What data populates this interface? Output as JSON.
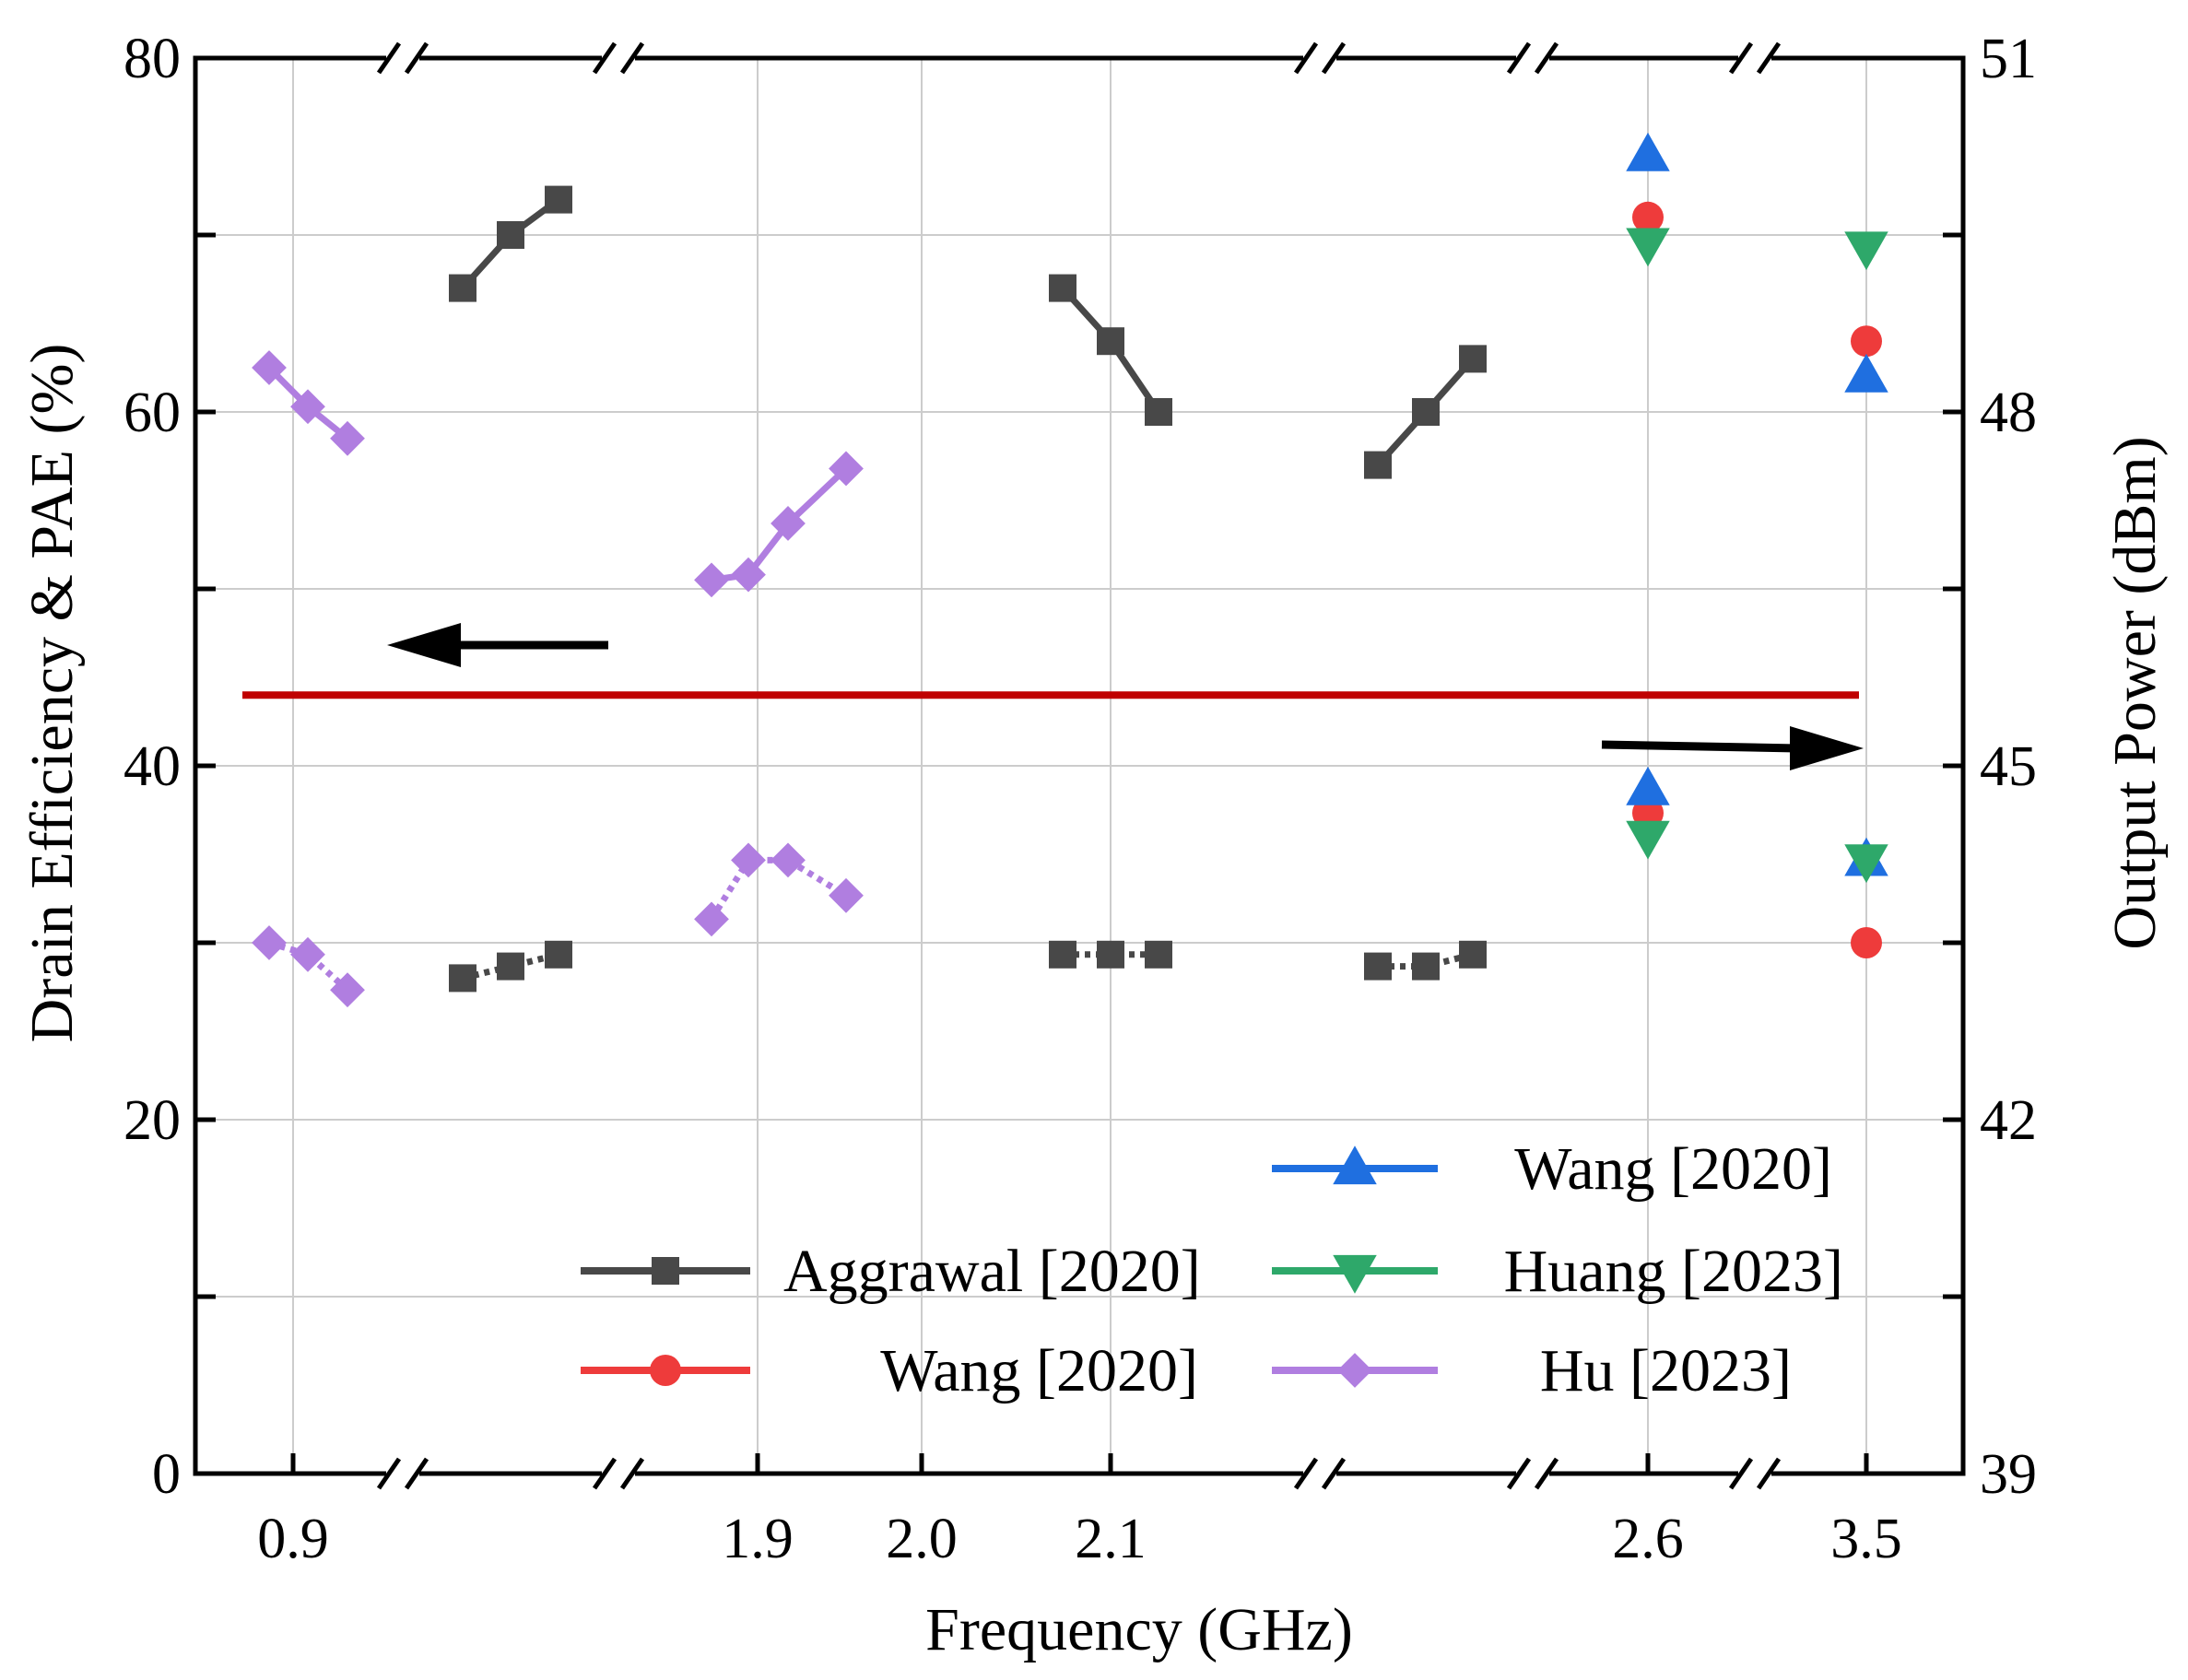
{
  "chart_data": {
    "type": "line",
    "xlabel": "Frequency (GHz)",
    "ylabel_left": "Drain Efficiency & PAE (%)",
    "ylabel_right": "Output Power (dBm)",
    "ylim_left": [
      0,
      80
    ],
    "ylim_right": [
      39,
      51
    ],
    "y_ticks_left": [
      "0",
      "20",
      "40",
      "60",
      "80"
    ],
    "y_ticks_right": [
      "39",
      "42",
      "45",
      "48",
      "51"
    ],
    "x_tick_labels": [
      "0.9",
      "1.9",
      "2.0",
      "2.1",
      "2.6",
      "3.5"
    ],
    "grid": true,
    "axis_break": true,
    "reference_line_value": 44,
    "colors": {
      "aggrawal": "#484848",
      "wang_red": "#ee3b3b",
      "wang_blue": "#1f6fe0",
      "huang": "#2ea86a",
      "hu": "#b07ee0",
      "reference": "#c00000"
    },
    "series": [
      {
        "name": "Aggrawal [2020]",
        "metric": "efficiency",
        "marker": "square",
        "color_key": "aggrawal",
        "groups": [
          [
            {
              "x": "0.97",
              "y": 67
            },
            {
              "x": "0.99",
              "y": 70
            },
            {
              "x": "1.01",
              "y": 72
            }
          ],
          [
            {
              "x": "2.08",
              "y": 67
            },
            {
              "x": "2.10",
              "y": 64
            },
            {
              "x": "2.12",
              "y": 60
            }
          ],
          [
            {
              "x": "2.23",
              "y": 57
            },
            {
              "x": "2.25",
              "y": 60
            },
            {
              "x": "2.27",
              "y": 63
            }
          ]
        ]
      },
      {
        "name": "Aggrawal [2020]",
        "metric": "output_power_dBm",
        "marker": "square",
        "color_key": "aggrawal",
        "dashed": true,
        "groups": [
          [
            {
              "x": "0.97",
              "y": 43.2
            },
            {
              "x": "0.99",
              "y": 43.3
            },
            {
              "x": "1.01",
              "y": 43.4
            }
          ],
          [
            {
              "x": "2.08",
              "y": 43.4
            },
            {
              "x": "2.10",
              "y": 43.4
            },
            {
              "x": "2.12",
              "y": 43.4
            }
          ],
          [
            {
              "x": "2.23",
              "y": 43.3
            },
            {
              "x": "2.25",
              "y": 43.3
            },
            {
              "x": "2.27",
              "y": 43.4
            }
          ]
        ]
      },
      {
        "name": "Hu [2023]",
        "metric": "efficiency",
        "marker": "diamond",
        "color_key": "hu",
        "groups": [
          [
            {
              "x": "0.89",
              "y": 62.5
            },
            {
              "x": "0.91",
              "y": 60.3
            },
            {
              "x": "0.93",
              "y": 58.5
            }
          ],
          [
            {
              "x": "1.89",
              "y": 50.5
            },
            {
              "x": "1.91",
              "y": 50.8
            },
            {
              "x": "1.93",
              "y": 53.7
            },
            {
              "x": "1.95",
              "y": 56.8
            }
          ]
        ]
      },
      {
        "name": "Hu [2023]",
        "metric": "output_power_dBm",
        "marker": "diamond",
        "color_key": "hu",
        "dashed": true,
        "groups": [
          [
            {
              "x": "0.89",
              "y": 43.5
            },
            {
              "x": "0.91",
              "y": 43.4
            },
            {
              "x": "0.93",
              "y": 43.1
            }
          ],
          [
            {
              "x": "1.89",
              "y": 43.7
            },
            {
              "x": "1.91",
              "y": 44.2
            },
            {
              "x": "1.93",
              "y": 44.2
            },
            {
              "x": "1.95",
              "y": 43.9
            }
          ]
        ]
      },
      {
        "name": "Wang [2020]",
        "metric": "efficiency",
        "marker": "circle",
        "color_key": "wang_red",
        "points": [
          {
            "x": "2.6",
            "y": 71
          },
          {
            "x": "3.5",
            "y": 64
          }
        ]
      },
      {
        "name": "Wang [2020]",
        "metric": "output_power_dBm",
        "marker": "circle",
        "color_key": "wang_red",
        "points": [
          {
            "x": "2.6",
            "y": 44.6
          },
          {
            "x": "3.5",
            "y": 43.5
          }
        ]
      },
      {
        "name": "Wang [2020]",
        "metric": "efficiency",
        "marker": "triangle-up",
        "color_key": "wang_blue",
        "points": [
          {
            "x": "2.6",
            "y": 74.5
          },
          {
            "x": "3.5",
            "y": 62
          }
        ]
      },
      {
        "name": "Wang [2020]",
        "metric": "output_power_dBm",
        "marker": "triangle-up",
        "color_key": "wang_blue",
        "points": [
          {
            "x": "2.6",
            "y": 44.8
          },
          {
            "x": "3.5",
            "y": 44.2
          }
        ]
      },
      {
        "name": "Huang [2023]",
        "metric": "efficiency",
        "marker": "triangle-down",
        "color_key": "huang",
        "points": [
          {
            "x": "2.6",
            "y": 69.5
          },
          {
            "x": "3.5",
            "y": 69.3
          }
        ]
      },
      {
        "name": "Huang [2023]",
        "metric": "output_power_dBm",
        "marker": "triangle-down",
        "color_key": "huang",
        "points": [
          {
            "x": "2.6",
            "y": 44.4
          },
          {
            "x": "3.5",
            "y": 44.2
          }
        ]
      }
    ],
    "legend": {
      "placement": "bottom-right",
      "entries": [
        {
          "label": "Aggrawal [2020]",
          "marker": "square",
          "color_key": "aggrawal"
        },
        {
          "label": "Wang [2020]",
          "marker": "circle",
          "color_key": "wang_red"
        },
        {
          "label": "Wang [2020]",
          "marker": "triangle-up",
          "color_key": "wang_blue"
        },
        {
          "label": "Huang [2023]",
          "marker": "triangle-down",
          "color_key": "huang"
        },
        {
          "label": "Hu [2023]",
          "marker": "diamond",
          "color_key": "hu"
        }
      ]
    },
    "annotations": [
      {
        "type": "arrow",
        "direction": "left",
        "indicates": "left axis (efficiency)"
      },
      {
        "type": "arrow",
        "direction": "right",
        "indicates": "right axis (output power)"
      }
    ]
  }
}
